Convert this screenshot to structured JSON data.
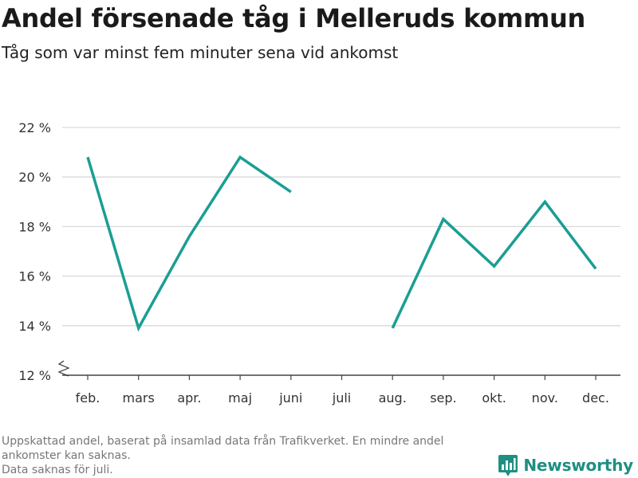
{
  "header": {
    "title": "Andel försenade tåg i Melleruds kommun",
    "subtitle": "Tåg som var minst fem minuter sena vid ankomst"
  },
  "chart_data": {
    "type": "line",
    "categories": [
      "feb.",
      "mars",
      "apr.",
      "maj",
      "juni",
      "juli",
      "aug.",
      "sep.",
      "okt.",
      "nov.",
      "dec."
    ],
    "series": [
      {
        "values": [
          20.8,
          13.9,
          17.6,
          20.8,
          19.4,
          null,
          13.9,
          18.3,
          16.4,
          19.0,
          16.3
        ],
        "color": "#1a9e94"
      }
    ],
    "ylim": [
      12,
      22
    ],
    "yticks": [
      12,
      14,
      16,
      18,
      20,
      22
    ],
    "ytick_labels": [
      "12 %",
      "14 %",
      "16 %",
      "18 %",
      "20 %",
      "22 %"
    ],
    "axis_break": true,
    "grid": true,
    "title": "Andel försenade tåg i Melleruds kommun",
    "xlabel": "",
    "ylabel": ""
  },
  "footer": {
    "notes": [
      "Uppskattad andel, baserat på insamlad data från Trafikverket. En mindre andel",
      "ankomster kan saknas.",
      "Data saknas för juli."
    ],
    "brand": "Newsworthy",
    "brand_icon": "bar-chart-logo-icon",
    "brand_color": "#1f8f83"
  }
}
